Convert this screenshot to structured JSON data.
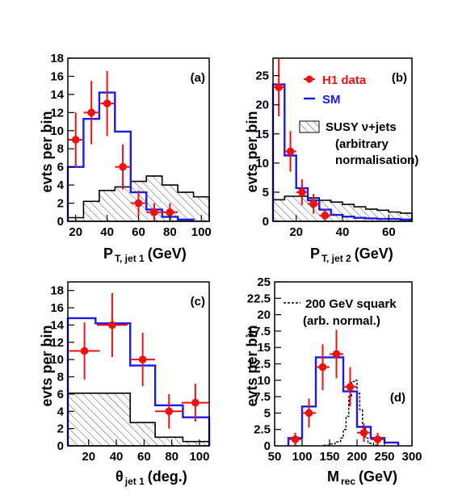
{
  "chart_data": [
    {
      "type": "histogram",
      "panel_label": "(a)",
      "ylabel": "evts per bin",
      "xlabel_main": "P",
      "xlabel_sub": "T, jet 1",
      "xlabel_unit": "(GeV)",
      "xlim": [
        15,
        105
      ],
      "ylim": [
        0,
        18
      ],
      "xticks": [
        20,
        40,
        60,
        80,
        100
      ],
      "yticks": [
        0,
        2,
        4,
        6,
        8,
        10,
        12,
        14,
        16,
        18
      ],
      "sm": {
        "edges": [
          15,
          25,
          35,
          45,
          55,
          65,
          75,
          85,
          95
        ],
        "values": [
          6,
          11.3,
          14.2,
          9.9,
          3.2,
          1.3,
          0.5,
          0.2
        ]
      },
      "susy": {
        "edges": [
          15,
          25,
          35,
          45,
          55,
          65,
          75,
          85,
          95,
          105
        ],
        "values": [
          0.4,
          2.2,
          3.4,
          3.8,
          4.4,
          5,
          4,
          3.2,
          2.7
        ]
      },
      "data": [
        {
          "x": 20,
          "y": 9,
          "xerr": 5,
          "yerr": 3
        },
        {
          "x": 30,
          "y": 12,
          "xerr": 5,
          "yerr": 3.5
        },
        {
          "x": 40,
          "y": 13,
          "xerr": 5,
          "yerr": 3.6
        },
        {
          "x": 50,
          "y": 6,
          "xerr": 5,
          "yerr": 2.5
        },
        {
          "x": 60,
          "y": 2,
          "xerr": 5,
          "yerr": 1.4
        },
        {
          "x": 70,
          "y": 1,
          "xerr": 5,
          "yerr": 1
        },
        {
          "x": 80,
          "y": 1,
          "xerr": 5,
          "yerr": 1
        }
      ]
    },
    {
      "type": "histogram",
      "panel_label": "(b)",
      "ylabel": "evts per bin",
      "xlabel_main": "P",
      "xlabel_sub": "T, jet 2",
      "xlabel_unit": "(GeV)",
      "xlim": [
        10,
        70
      ],
      "ylim": [
        0,
        28
      ],
      "xticks": [
        20,
        40,
        60
      ],
      "yticks": [
        0,
        5,
        10,
        15,
        20,
        25
      ],
      "sm": {
        "edges": [
          10,
          15,
          20,
          25,
          30,
          35,
          40,
          45,
          50,
          55,
          60,
          65,
          70
        ],
        "values": [
          23.5,
          11.3,
          5.7,
          3.6,
          2,
          1.1,
          0.8,
          0.6,
          0.5,
          0.4,
          0.4,
          0.3
        ]
      },
      "susy": {
        "edges": [
          10,
          15,
          20,
          25,
          30,
          35,
          40,
          45,
          50,
          55,
          60,
          65,
          70
        ],
        "values": [
          3.7,
          4.3,
          4.3,
          4,
          3.6,
          3.3,
          2.9,
          2.5,
          2.1,
          1.9,
          1.6,
          1.4
        ]
      },
      "data": [
        {
          "x": 12.5,
          "y": 23,
          "xerr": 2.5,
          "yerr": 5
        },
        {
          "x": 17.5,
          "y": 12,
          "xerr": 2.5,
          "yerr": 3.5
        },
        {
          "x": 22.5,
          "y": 5,
          "xerr": 2.5,
          "yerr": 2.2
        },
        {
          "x": 27.5,
          "y": 3,
          "xerr": 2.5,
          "yerr": 1.7
        },
        {
          "x": 32.5,
          "y": 1,
          "xerr": 2.5,
          "yerr": 1
        }
      ],
      "legend": {
        "data_label": "H1 data",
        "sm_label": "SM",
        "susy_label": "SUSY ν+jets",
        "susy_note_1": "(arbitrary",
        "susy_note_2": "normalisation)"
      }
    },
    {
      "type": "histogram",
      "panel_label": "(c)",
      "ylabel": "evts per bin",
      "xlabel_main": "θ",
      "xlabel_sub": "jet 1",
      "xlabel_unit": "(deg.)",
      "xlim": [
        5,
        107
      ],
      "ylim": [
        0,
        19
      ],
      "xticks": [
        20,
        40,
        60,
        80,
        100
      ],
      "yticks": [
        0,
        2,
        4,
        6,
        8,
        10,
        12,
        14,
        16,
        18
      ],
      "sm": {
        "edges": [
          5,
          25,
          50,
          68,
          88,
          107
        ],
        "values": [
          14.8,
          14.2,
          9.3,
          4.7,
          3.3
        ]
      },
      "susy": {
        "edges": [
          5,
          50,
          68,
          88,
          107
        ],
        "values": [
          6.1,
          2.7,
          1,
          0.5
        ]
      },
      "data": [
        {
          "x": 17,
          "y": 11,
          "xerr": 11,
          "yerr": 3.3
        },
        {
          "x": 37,
          "y": 14,
          "xerr": 11,
          "yerr": 3.7
        },
        {
          "x": 59,
          "y": 10,
          "xerr": 9,
          "yerr": 3.1
        },
        {
          "x": 78,
          "y": 4,
          "xerr": 10,
          "yerr": 2
        },
        {
          "x": 97,
          "y": 5,
          "xerr": 10,
          "yerr": 2.2
        }
      ]
    },
    {
      "type": "histogram",
      "panel_label": "(d)",
      "ylabel": "evts per bin",
      "xlabel_main": "M",
      "xlabel_sub": "rec",
      "xlabel_unit": "(GeV)",
      "xlim": [
        50,
        300
      ],
      "ylim": [
        0,
        25
      ],
      "xticks": [
        50,
        100,
        150,
        200,
        250,
        300
      ],
      "yticks": [
        0,
        2.5,
        5,
        7.5,
        10,
        12.5,
        15,
        17.5,
        20,
        22.5,
        25
      ],
      "sm": {
        "edges": [
          75,
          100,
          125,
          175,
          200,
          225,
          250,
          275
        ],
        "values": [
          1.2,
          6,
          13.5,
          8.3,
          2.9,
          1.2,
          0.5
        ]
      },
      "squark": {
        "edges": [
          140,
          150,
          160,
          170,
          175,
          180,
          185,
          190,
          195,
          200,
          205,
          210,
          215,
          220,
          230,
          240
        ],
        "values": [
          0.1,
          0.3,
          0.6,
          1.2,
          2.5,
          4.5,
          7.5,
          9.8,
          10,
          8,
          5.5,
          2.8,
          1.2,
          0.4,
          0.1
        ]
      },
      "data": [
        {
          "x": 87.5,
          "y": 1,
          "xerr": 12.5,
          "yerr": 1
        },
        {
          "x": 112.5,
          "y": 5,
          "xerr": 12.5,
          "yerr": 2.2
        },
        {
          "x": 137.5,
          "y": 12,
          "xerr": 12.5,
          "yerr": 3.5
        },
        {
          "x": 162.5,
          "y": 14,
          "xerr": 12.5,
          "yerr": 3.7
        },
        {
          "x": 187.5,
          "y": 9,
          "xerr": 12.5,
          "yerr": 3
        },
        {
          "x": 212.5,
          "y": 2,
          "xerr": 12.5,
          "yerr": 1.4
        },
        {
          "x": 237.5,
          "y": 1,
          "xerr": 12.5,
          "yerr": 1
        }
      ],
      "legend": {
        "squark_label": "200 GeV squark",
        "squark_note": "(arb. normal.)"
      }
    }
  ],
  "colors": {
    "sm": "#1a1aee",
    "data": "#ee1111",
    "susy": "#000000",
    "hatch": "#555555"
  }
}
